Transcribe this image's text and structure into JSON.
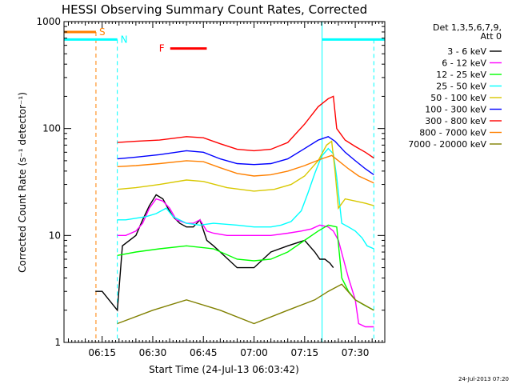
{
  "chart_data": {
    "type": "line",
    "title": "HESSI Observing Summary Count Rates, Corrected",
    "xlabel": "Start Time (24-Jul-13 06:03:42)",
    "ylabel": "Corrected Count Rate (s⁻¹ detector⁻¹)",
    "y_scale": "log",
    "ylim": [
      1,
      1000
    ],
    "xlim": [
      "06:03:42",
      "07:38:45"
    ],
    "x_tick_labels": [
      "06:15",
      "06:30",
      "06:45",
      "07:00",
      "07:15",
      "07:30"
    ],
    "y_tick_labels": [
      "1",
      "10",
      "100",
      "1000"
    ],
    "grid": false,
    "legend_position": "right",
    "legend_header": [
      "Det 1,3,5,6,7,9,",
      "Att 0"
    ],
    "series": [
      {
        "name": "3 - 6 keV",
        "color": "#000000",
        "x": [
          "06:13:00",
          "06:15:00",
          "06:19:30",
          "06:21:00",
          "06:25:00",
          "06:27:00",
          "06:29:00",
          "06:31:00",
          "06:33:00",
          "06:34:30",
          "06:36:00",
          "06:38:00",
          "06:40:00",
          "06:42:00",
          "06:44:00",
          "06:46:00",
          "06:48:00",
          "06:50:00",
          "06:55:00",
          "07:00:00",
          "07:05:00",
          "07:10:00",
          "07:15:00",
          "07:18:00",
          "07:19:30",
          "07:21:00",
          "07:22:30",
          "07:23:30"
        ],
        "y": [
          3,
          3,
          2,
          8,
          10,
          14,
          19,
          24,
          22,
          18,
          15,
          13,
          12,
          12,
          14,
          9,
          8,
          7,
          5,
          5,
          7,
          8,
          9,
          7,
          6,
          6,
          5.5,
          5
        ]
      },
      {
        "name": "6 - 12 keV",
        "color": "#ff00ff",
        "x": [
          "06:19:30",
          "06:22:00",
          "06:25:00",
          "06:27:00",
          "06:29:00",
          "06:31:00",
          "06:33:00",
          "06:35:00",
          "06:37:00",
          "06:40:00",
          "06:42:00",
          "06:44:00",
          "06:46:00",
          "06:48:00",
          "06:52:00",
          "06:58:00",
          "07:05:00",
          "07:10:00",
          "07:14:00",
          "07:17:00",
          "07:19:30",
          "07:22:00",
          "07:23:30",
          "07:25:00",
          "07:26:30",
          "07:28:00",
          "07:30:00",
          "07:31:00",
          "07:33:00",
          "07:35:30"
        ],
        "y": [
          10,
          10,
          11,
          13,
          18,
          22,
          21,
          18,
          14,
          13,
          13,
          14,
          11,
          10.5,
          10,
          10,
          10,
          10.5,
          11,
          11.5,
          12.5,
          12,
          11,
          9,
          6,
          4,
          2.5,
          1.5,
          1.4,
          1.4
        ]
      },
      {
        "name": "12 - 25 keV",
        "color": "#00ff00",
        "x": [
          "06:19:30",
          "06:25:00",
          "06:32:00",
          "06:40:00",
          "06:48:00",
          "06:55:00",
          "07:00:00",
          "07:05:00",
          "07:10:00",
          "07:15:00",
          "07:19:00",
          "07:22:00",
          "07:24:30",
          "07:26:00",
          "07:28:00",
          "07:30:00",
          "07:33:00",
          "07:35:30"
        ],
        "y": [
          6.5,
          7,
          7.5,
          8,
          7.5,
          6,
          5.8,
          6,
          7,
          9,
          11,
          12.5,
          12,
          4,
          3,
          2.5,
          2.2,
          2
        ]
      },
      {
        "name": "25 - 50 keV",
        "color": "#00ffff",
        "x": [
          "06:19:30",
          "06:22:00",
          "06:25:00",
          "06:28:00",
          "06:31:00",
          "06:34:00",
          "06:36:00",
          "06:40:00",
          "06:44:00",
          "06:48:00",
          "06:55:00",
          "07:00:00",
          "07:05:00",
          "07:08:00",
          "07:11:00",
          "07:14:00",
          "07:16:00",
          "07:18:00",
          "07:20:00",
          "07:22:00",
          "07:23:30",
          "07:24:30",
          "07:26:00",
          "07:28:00",
          "07:30:00",
          "07:32:00",
          "07:33:30",
          "07:35:30"
        ],
        "y": [
          14,
          14,
          14.5,
          15,
          16,
          18,
          15,
          13,
          12.5,
          13,
          12.5,
          12,
          12,
          12.5,
          13.5,
          17,
          25,
          38,
          55,
          65,
          58,
          35,
          13,
          12,
          11,
          9.5,
          8,
          7.5
        ]
      },
      {
        "name": "50 - 100 keV",
        "color": "#d8c800",
        "x": [
          "06:19:30",
          "06:25:00",
          "06:32:00",
          "06:40:00",
          "06:45:00",
          "06:52:00",
          "07:00:00",
          "07:06:00",
          "07:11:00",
          "07:15:00",
          "07:19:00",
          "07:21:30",
          "07:23:00",
          "07:24:00",
          "07:25:00",
          "07:27:00",
          "07:30:00",
          "07:33:00",
          "07:35:30"
        ],
        "y": [
          27,
          28,
          30,
          33,
          32,
          28,
          26,
          27,
          30,
          36,
          50,
          70,
          76,
          40,
          18,
          22,
          21,
          20,
          19
        ]
      },
      {
        "name": "100 - 300 keV",
        "color": "#0000ff",
        "x": [
          "06:19:30",
          "06:25:00",
          "06:32:00",
          "06:40:00",
          "06:45:00",
          "06:50:00",
          "06:55:00",
          "07:00:00",
          "07:05:00",
          "07:10:00",
          "07:15:00",
          "07:19:00",
          "07:22:00",
          "07:24:00",
          "07:27:00",
          "07:30:00",
          "07:33:00",
          "07:35:30"
        ],
        "y": [
          52,
          54,
          57,
          62,
          60,
          52,
          47,
          46,
          47,
          52,
          65,
          78,
          84,
          76,
          60,
          50,
          42,
          37
        ]
      },
      {
        "name": "300 - 800 keV",
        "color": "#ff0000",
        "x": [
          "06:19:30",
          "06:25:00",
          "06:32:00",
          "06:40:00",
          "06:45:00",
          "06:50:00",
          "06:55:00",
          "07:00:00",
          "07:05:00",
          "07:10:00",
          "07:15:00",
          "07:19:00",
          "07:22:00",
          "07:23:30",
          "07:24:30",
          "07:27:00",
          "07:30:00",
          "07:33:00",
          "07:35:30"
        ],
        "y": [
          74,
          76,
          78,
          84,
          82,
          72,
          64,
          62,
          64,
          74,
          110,
          160,
          190,
          200,
          100,
          78,
          68,
          60,
          53
        ]
      },
      {
        "name": "800 - 7000 keV",
        "color": "#ff8000",
        "x": [
          "06:19:30",
          "06:25:00",
          "06:32:00",
          "06:40:00",
          "06:45:00",
          "06:50:00",
          "06:55:00",
          "07:00:00",
          "07:05:00",
          "07:10:00",
          "07:15:00",
          "07:20:00",
          "07:23:00",
          "07:25:00",
          "07:28:00",
          "07:31:00",
          "07:35:30"
        ],
        "y": [
          44,
          45,
          47,
          50,
          49,
          43,
          38,
          36,
          37,
          40,
          45,
          52,
          56,
          50,
          42,
          36,
          31
        ]
      },
      {
        "name": "7000 - 20000 keV",
        "color": "#808000",
        "x": [
          "06:19:30",
          "06:30:00",
          "06:40:00",
          "06:50:00",
          "07:00:00",
          "07:10:00",
          "07:18:00",
          "07:22:00",
          "07:26:00",
          "07:30:00",
          "07:35:30"
        ],
        "y": [
          1.5,
          2,
          2.5,
          2,
          1.5,
          2,
          2.5,
          3,
          3.5,
          2.5,
          2
        ]
      }
    ],
    "annotations": [
      {
        "label": "S",
        "color": "#ff8000",
        "x_start": "06:03:42",
        "x_end": "06:13:10",
        "level": 800
      },
      {
        "label": "N",
        "color": "#00ffff",
        "x_start": "06:03:42",
        "x_end": "06:19:30",
        "level": 680
      },
      {
        "label": "F",
        "color": "#ff0000",
        "x_start": "06:35:10",
        "x_end": "06:46:00",
        "level": 560
      },
      {
        "label": "",
        "color": "#00ffff",
        "x_start": "07:20:10",
        "x_end": "07:38:45",
        "level": 680
      }
    ],
    "vertical_markers": [
      {
        "color": "#ff8000",
        "style": "dashed",
        "x": "06:13:10",
        "y_top": 800
      },
      {
        "color": "#00ffff",
        "style": "dashed",
        "x": "06:19:30",
        "y_top": 680
      },
      {
        "color": "#00ffff",
        "style": "solid",
        "x": "07:20:10",
        "y_top": 1000
      },
      {
        "color": "#00ffff",
        "style": "dashed",
        "x": "07:35:30",
        "y_top": 680
      }
    ],
    "footer_stamp": "24-Jul-2013 07:20"
  }
}
